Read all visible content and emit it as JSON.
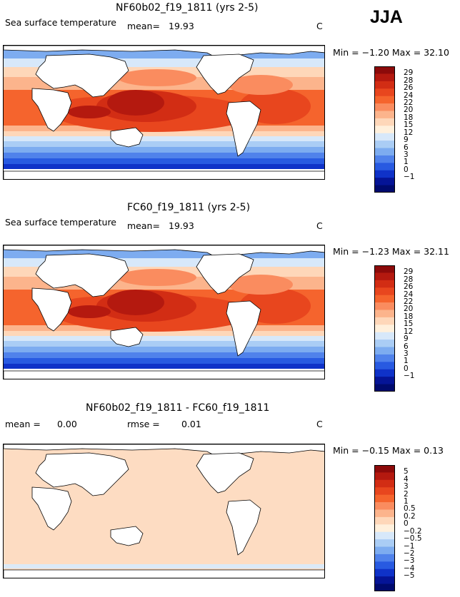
{
  "season": "JJA",
  "panels": [
    {
      "title": "NF60b02_f19_1811 (yrs 2-5)",
      "variable": "Sea surface temperature",
      "stat_label": "mean=",
      "stat_value": "19.93",
      "units": "C",
      "min_max_text": "Min =  −1.20  Max =  32.10",
      "colorbar_ticks": [
        "29",
        "28",
        "26",
        "24",
        "22",
        "20",
        "18",
        "15",
        "12",
        "9",
        "6",
        "3",
        "1",
        "0",
        "−1"
      ],
      "colorbar_colors": [
        "#8c0a0a",
        "#b4190f",
        "#d22d14",
        "#e8461e",
        "#f5642d",
        "#fa8c5f",
        "#fcb48c",
        "#fed7b9",
        "#fff0dc",
        "#d7e8fa",
        "#aacdf5",
        "#7dacf0",
        "#5082eb",
        "#285ae1",
        "#0f32c8",
        "#051496",
        "#000a6e"
      ],
      "chart_data": {
        "type": "heatmap",
        "title": "NF60b02_f19_1811 (yrs 2-5)",
        "variable": "Sea surface temperature",
        "units": "C",
        "mean": 19.93,
        "min": -1.2,
        "max": 32.1,
        "contour_levels": [
          -1,
          0,
          1,
          3,
          6,
          9,
          12,
          15,
          18,
          20,
          22,
          24,
          26,
          28,
          29
        ]
      }
    },
    {
      "title": "FC60_f19_1811 (yrs 2-5)",
      "variable": "Sea surface temperature",
      "stat_label": "mean=",
      "stat_value": "19.93",
      "units": "C",
      "min_max_text": "Min =  −1.23  Max =  32.11",
      "colorbar_ticks": [
        "29",
        "28",
        "26",
        "24",
        "22",
        "20",
        "18",
        "15",
        "12",
        "9",
        "6",
        "3",
        "1",
        "0",
        "−1"
      ],
      "colorbar_colors": [
        "#8c0a0a",
        "#b4190f",
        "#d22d14",
        "#e8461e",
        "#f5642d",
        "#fa8c5f",
        "#fcb48c",
        "#fed7b9",
        "#fff0dc",
        "#d7e8fa",
        "#aacdf5",
        "#7dacf0",
        "#5082eb",
        "#285ae1",
        "#0f32c8",
        "#051496",
        "#000a6e"
      ],
      "chart_data": {
        "type": "heatmap",
        "title": "FC60_f19_1811 (yrs 2-5)",
        "variable": "Sea surface temperature",
        "units": "C",
        "mean": 19.93,
        "min": -1.23,
        "max": 32.11,
        "contour_levels": [
          -1,
          0,
          1,
          3,
          6,
          9,
          12,
          15,
          18,
          20,
          22,
          24,
          26,
          28,
          29
        ]
      }
    },
    {
      "title": "NF60b02_f19_1811 - FC60_f19_1811",
      "mean_label": "mean =",
      "mean_value": "0.00",
      "rmse_label": "rmse =",
      "rmse_value": "0.01",
      "units": "C",
      "min_max_text": "Min =  −0.15  Max =   0.13",
      "colorbar_ticks": [
        "5",
        "4",
        "3",
        "2",
        "1",
        "0.5",
        "0.2",
        "0",
        "−0.2",
        "−0.5",
        "−1",
        "−2",
        "−3",
        "−4",
        "−5"
      ],
      "colorbar_colors": [
        "#8c0a0a",
        "#b4190f",
        "#d22d14",
        "#e8461e",
        "#f5642d",
        "#fa8c5f",
        "#fcb48c",
        "#fed7b9",
        "#fff0dc",
        "#d7e8fa",
        "#aacdf5",
        "#7dacf0",
        "#5082eb",
        "#285ae1",
        "#0f32c8",
        "#051496",
        "#000a6e"
      ],
      "chart_data": {
        "type": "heatmap",
        "title": "NF60b02_f19_1811 - FC60_f19_1811",
        "units": "C",
        "mean": 0.0,
        "rmse": 0.01,
        "min": -0.15,
        "max": 0.13,
        "contour_levels": [
          -5,
          -4,
          -3,
          -2,
          -1,
          -0.5,
          -0.2,
          0,
          0.2,
          0.5,
          1,
          2,
          3,
          4,
          5
        ]
      }
    }
  ]
}
